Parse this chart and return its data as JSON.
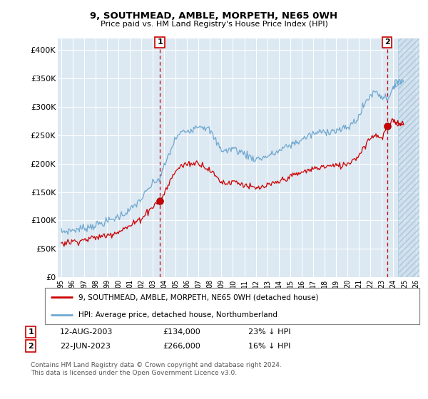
{
  "title": "9, SOUTHMEAD, AMBLE, MORPETH, NE65 0WH",
  "subtitle": "Price paid vs. HM Land Registry's House Price Index (HPI)",
  "legend_line1": "9, SOUTHMEAD, AMBLE, MORPETH, NE65 0WH (detached house)",
  "legend_line2": "HPI: Average price, detached house, Northumberland",
  "annotation1_date": "12-AUG-2003",
  "annotation1_price": "£134,000",
  "annotation1_hpi": "23% ↓ HPI",
  "annotation2_date": "22-JUN-2023",
  "annotation2_price": "£266,000",
  "annotation2_hpi": "16% ↓ HPI",
  "footer": "Contains HM Land Registry data © Crown copyright and database right 2024.\nThis data is licensed under the Open Government Licence v3.0.",
  "hpi_color": "#6fa8d0",
  "price_color": "#cc0000",
  "marker_color": "#cc0000",
  "plot_bg_color": "#dce8f2",
  "ylim": [
    0,
    420000
  ],
  "yticks": [
    0,
    50000,
    100000,
    150000,
    200000,
    250000,
    300000,
    350000,
    400000
  ],
  "ytick_labels": [
    "£0",
    "£50K",
    "£100K",
    "£150K",
    "£200K",
    "£250K",
    "£300K",
    "£350K",
    "£400K"
  ],
  "sale1_x": 2003.617,
  "sale1_y": 134000,
  "sale2_x": 2023.472,
  "sale2_y": 266000,
  "xlim_left": 1994.7,
  "xlim_right": 2026.3,
  "hatch_start": 2024.4,
  "xticks": [
    1995,
    1996,
    1997,
    1998,
    1999,
    2000,
    2001,
    2002,
    2003,
    2004,
    2005,
    2006,
    2007,
    2008,
    2009,
    2010,
    2011,
    2012,
    2013,
    2014,
    2015,
    2016,
    2017,
    2018,
    2019,
    2020,
    2021,
    2022,
    2023,
    2024,
    2025,
    2026
  ],
  "xtick_labels": [
    "95",
    "96",
    "97",
    "98",
    "99",
    "00",
    "01",
    "02",
    "03",
    "04",
    "05",
    "06",
    "07",
    "08",
    "09",
    "10",
    "11",
    "12",
    "13",
    "14",
    "15",
    "16",
    "17",
    "18",
    "19",
    "20",
    "21",
    "22",
    "23",
    "24",
    "25",
    "26"
  ]
}
